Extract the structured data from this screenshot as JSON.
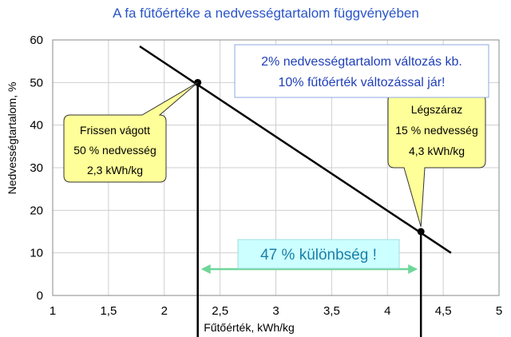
{
  "chart_data": {
    "type": "line",
    "title": "A fa fűtőértéke a nedvességtartalom függvényében",
    "xlabel": "Fűtőérték, kWh/kg",
    "ylabel": "Nedvességtartalom, %",
    "xlim": [
      1,
      5
    ],
    "ylim": [
      0,
      60
    ],
    "x_ticks": [
      "1",
      "1,5",
      "2",
      "2,5",
      "3",
      "3,5",
      "4",
      "4,5",
      "5"
    ],
    "y_ticks": [
      "0",
      "10",
      "20",
      "30",
      "40",
      "50",
      "60"
    ],
    "grid": true,
    "series": [
      {
        "x": [
          1.78,
          4.57
        ],
        "y": [
          58.5,
          10
        ]
      }
    ],
    "points": [
      {
        "x": 2.3,
        "y": 50
      },
      {
        "x": 4.3,
        "y": 15
      }
    ],
    "callouts": [
      {
        "lines": [
          "Frissen vágott",
          "50 % nedvesség",
          "2,3 kWh/kg"
        ]
      },
      {
        "lines": [
          "Légszáraz",
          "15 % nedvesség",
          "4,3 kWh/kg"
        ]
      }
    ],
    "note_lines": [
      "2% nedvességtartalom változás kb.",
      "10% fűtőérték változással jár!"
    ],
    "difference_label": "47 % különbség !",
    "colors": {
      "title": "#2a55c9",
      "line": "#000000",
      "callout_fill": "#ffff99",
      "note_text": "#1f3fb8",
      "note_border": "#8da8e0",
      "diff_fill": "#ccffff",
      "diff_text": "#1a7fa8",
      "arrow": "#6fd69a"
    }
  }
}
